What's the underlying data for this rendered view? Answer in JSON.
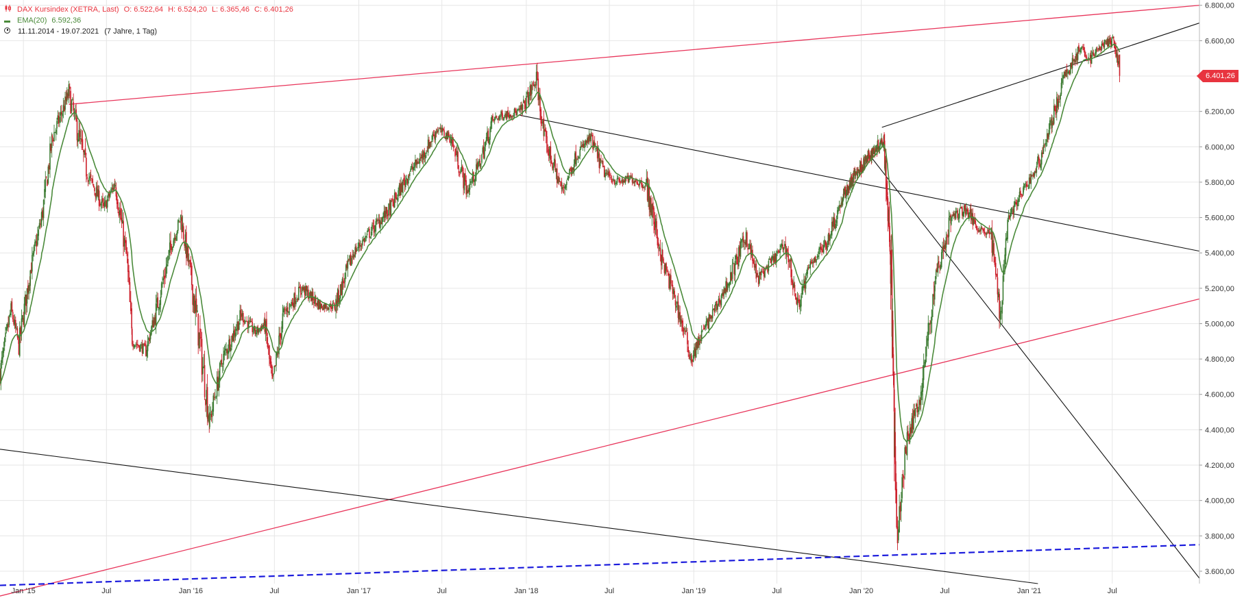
{
  "legend": {
    "instrument": "DAX Kursindex (XETRA, Last)",
    "open": "O: 6.522,64",
    "high": "H: 6.524,20",
    "low": "L: 6.365,46",
    "close": "C: 6.401,26",
    "ema_label": "EMA(20)",
    "ema_value": "6.592,36",
    "range": "11.11.2014 - 19.07.2021",
    "range_detail": "(7 Jahre, 1 Tag)"
  },
  "last_price_label": "6.401,26",
  "colors": {
    "candle_up": "#3a7a30",
    "candle_down": "#cc1f2a",
    "ema": "#4a8a3a",
    "resistance_line": "#e8345a",
    "trend_line": "#111111",
    "dashed_line": "#1a1adc",
    "grid": "#e6e6e6",
    "badge": "#e8343f"
  },
  "chart_data": {
    "type": "candlestick",
    "x_ticks": [
      "Jan '15",
      "Jul",
      "Jan '16",
      "Jul",
      "Jan '17",
      "Jul",
      "Jan '18",
      "Jul",
      "Jan '19",
      "Jul",
      "Jan '20",
      "Jul",
      "Jan '21",
      "Jul"
    ],
    "x_tick_dates": [
      "2015-01-01",
      "2015-07-01",
      "2016-01-01",
      "2016-07-01",
      "2017-01-01",
      "2017-07-01",
      "2018-01-01",
      "2018-07-01",
      "2019-01-01",
      "2019-07-01",
      "2020-01-01",
      "2020-07-01",
      "2021-01-01",
      "2021-07-01"
    ],
    "xlim": [
      "2014-11-11",
      "2022-01-07"
    ],
    "y_ticks": [
      6800,
      6600,
      6400,
      6200,
      6000,
      5800,
      5600,
      5400,
      5200,
      5000,
      4800,
      4600,
      4400,
      4200,
      4000,
      3800,
      3600
    ],
    "y_tick_labels": [
      "6.800,00",
      "6.600,00",
      "6.400,00",
      "6.200,00",
      "6.000,00",
      "5.800,00",
      "5.600,00",
      "5.400,00",
      "5.200,00",
      "5.000,00",
      "4.800,00",
      "4.600,00",
      "4.400,00",
      "4.200,00",
      "4.000,00",
      "3.800,00",
      "3.600,00"
    ],
    "ylim": [
      3530,
      6830
    ],
    "last_close": 6401.26,
    "price_path": [
      [
        "2014-11-11",
        4720
      ],
      [
        "2014-12-05",
        5080
      ],
      [
        "2014-12-22",
        4880
      ],
      [
        "2015-01-16",
        5300
      ],
      [
        "2015-02-10",
        5600
      ],
      [
        "2015-03-05",
        6050
      ],
      [
        "2015-04-10",
        6300
      ],
      [
        "2015-05-20",
        5850
      ],
      [
        "2015-06-25",
        5650
      ],
      [
        "2015-07-20",
        5800
      ],
      [
        "2015-08-15",
        5350
      ],
      [
        "2015-08-26",
        4900
      ],
      [
        "2015-09-25",
        4850
      ],
      [
        "2015-10-15",
        5050
      ],
      [
        "2015-11-20",
        5450
      ],
      [
        "2015-12-10",
        5600
      ],
      [
        "2016-01-05",
        5200
      ],
      [
        "2016-02-11",
        4450
      ],
      [
        "2016-03-10",
        4800
      ],
      [
        "2016-04-20",
        5050
      ],
      [
        "2016-05-20",
        4950
      ],
      [
        "2016-06-10",
        5000
      ],
      [
        "2016-06-27",
        4650
      ],
      [
        "2016-07-20",
        5050
      ],
      [
        "2016-08-30",
        5200
      ],
      [
        "2016-10-10",
        5100
      ],
      [
        "2016-11-10",
        5100
      ],
      [
        "2016-12-20",
        5400
      ],
      [
        "2017-01-20",
        5500
      ],
      [
        "2017-03-10",
        5650
      ],
      [
        "2017-04-20",
        5850
      ],
      [
        "2017-05-20",
        5950
      ],
      [
        "2017-06-20",
        6100
      ],
      [
        "2017-07-20",
        6050
      ],
      [
        "2017-08-25",
        5750
      ],
      [
        "2017-09-20",
        5900
      ],
      [
        "2017-10-20",
        6150
      ],
      [
        "2017-11-10",
        6180
      ],
      [
        "2017-12-20",
        6200
      ],
      [
        "2018-01-23",
        6380
      ],
      [
        "2018-02-09",
        6050
      ],
      [
        "2018-03-20",
        5750
      ],
      [
        "2018-04-20",
        5950
      ],
      [
        "2018-05-20",
        6050
      ],
      [
        "2018-06-20",
        5850
      ],
      [
        "2018-07-20",
        5800
      ],
      [
        "2018-08-20",
        5820
      ],
      [
        "2018-09-20",
        5780
      ],
      [
        "2018-10-25",
        5350
      ],
      [
        "2018-11-20",
        5150
      ],
      [
        "2018-12-27",
        4800
      ],
      [
        "2019-01-20",
        4950
      ],
      [
        "2019-02-20",
        5100
      ],
      [
        "2019-03-20",
        5250
      ],
      [
        "2019-04-25",
        5500
      ],
      [
        "2019-05-20",
        5250
      ],
      [
        "2019-06-20",
        5350
      ],
      [
        "2019-07-20",
        5450
      ],
      [
        "2019-08-15",
        5100
      ],
      [
        "2019-09-15",
        5350
      ],
      [
        "2019-10-15",
        5450
      ],
      [
        "2019-11-20",
        5700
      ],
      [
        "2019-12-20",
        5850
      ],
      [
        "2020-01-20",
        5950
      ],
      [
        "2020-02-19",
        6050
      ],
      [
        "2020-03-05",
        5400
      ],
      [
        "2020-03-18",
        3780
      ],
      [
        "2020-04-10",
        4350
      ],
      [
        "2020-05-10",
        4600
      ],
      [
        "2020-06-10",
        5250
      ],
      [
        "2020-07-15",
        5600
      ],
      [
        "2020-08-15",
        5650
      ],
      [
        "2020-09-10",
        5550
      ],
      [
        "2020-10-10",
        5500
      ],
      [
        "2020-10-30",
        5050
      ],
      [
        "2020-11-15",
        5600
      ],
      [
        "2020-12-20",
        5750
      ],
      [
        "2021-01-20",
        5900
      ],
      [
        "2021-02-20",
        6150
      ],
      [
        "2021-03-20",
        6400
      ],
      [
        "2021-04-20",
        6550
      ],
      [
        "2021-05-15",
        6500
      ],
      [
        "2021-06-10",
        6580
      ],
      [
        "2021-07-05",
        6600
      ],
      [
        "2021-07-19",
        6401
      ]
    ],
    "trend_lines": [
      {
        "kind": "resistance",
        "from": [
          "2015-04-10",
          6240
        ],
        "to": [
          "2022-01-07",
          6800
        ]
      },
      {
        "kind": "support",
        "from": [
          "2014-11-11",
          3460
        ],
        "to": [
          "2022-01-07",
          5140
        ]
      },
      {
        "kind": "trend",
        "from": [
          "2017-12-15",
          6180
        ],
        "to": [
          "2022-01-07",
          5410
        ]
      },
      {
        "kind": "trend",
        "from": [
          "2020-02-15",
          6110
        ],
        "to": [
          "2022-01-07",
          6700
        ]
      },
      {
        "kind": "trend",
        "from": [
          "2020-01-20",
          5950
        ],
        "to": [
          "2022-01-07",
          3560
        ]
      },
      {
        "kind": "trend",
        "from": [
          "2014-11-11",
          4290
        ],
        "to": [
          "2021-01-20",
          3530
        ]
      },
      {
        "kind": "dashed",
        "from": [
          "2014-11-11",
          3520
        ],
        "to": [
          "2022-01-07",
          3750
        ]
      }
    ]
  }
}
